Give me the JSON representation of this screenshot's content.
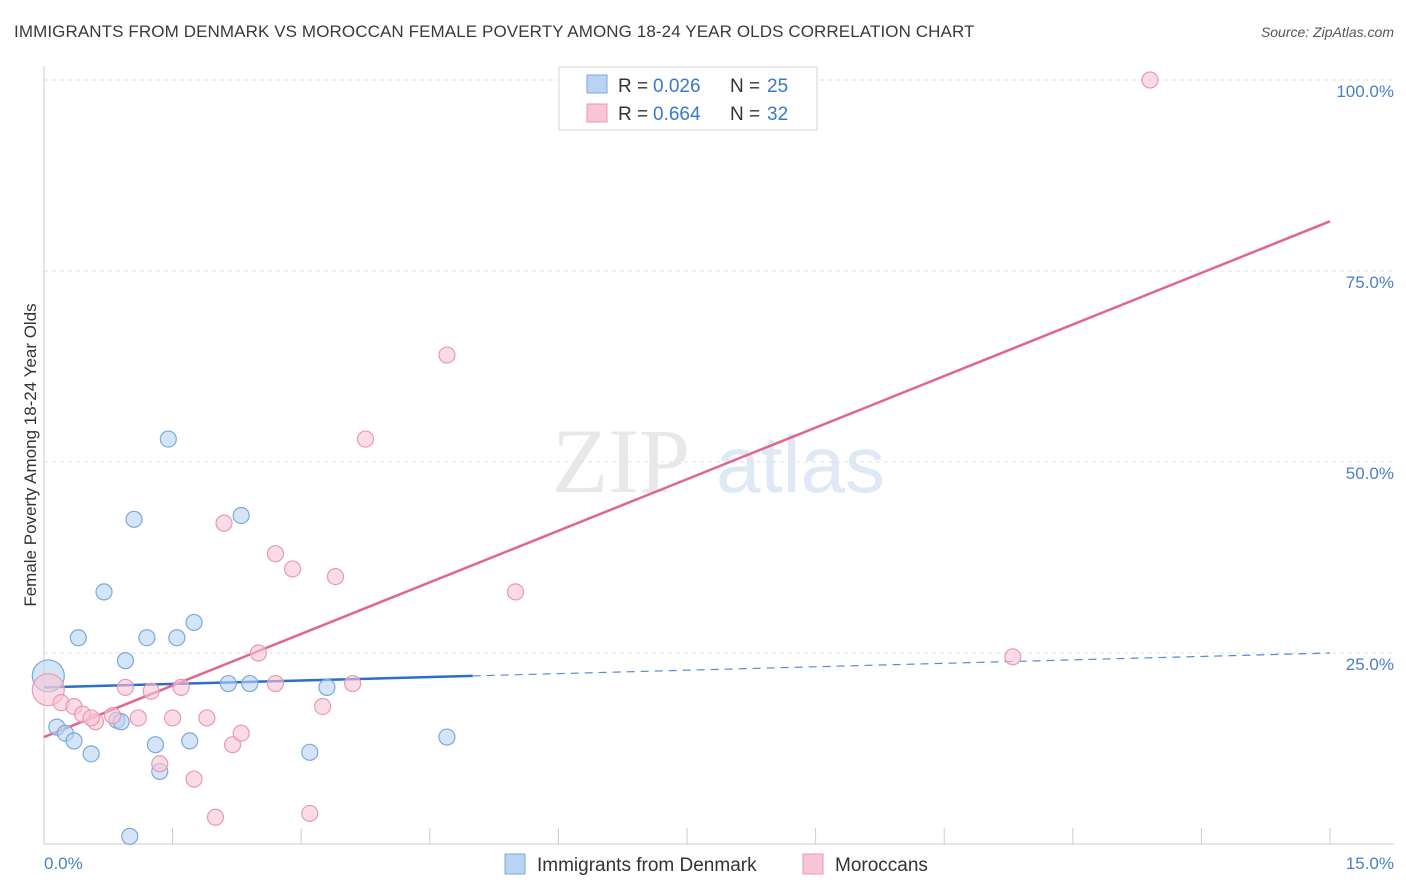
{
  "header": {
    "title": "IMMIGRANTS FROM DENMARK VS MOROCCAN FEMALE POVERTY AMONG 18-24 YEAR OLDS CORRELATION CHART",
    "source": "Source: ZipAtlas.com"
  },
  "watermark": {
    "zip": "ZIP",
    "atlas": "atlas"
  },
  "legend": {
    "rows": [
      {
        "r_label": "R = ",
        "r_value": "0.026",
        "n_label": "N = ",
        "n_value": "25"
      },
      {
        "r_label": "R = ",
        "r_value": "0.664",
        "n_label": "N = ",
        "n_value": "32"
      }
    ]
  },
  "chart_data": {
    "type": "scatter",
    "ylabel": "Female Poverty Among 18-24 Year Olds",
    "xlim": [
      0,
      15
    ],
    "ylim": [
      0,
      100
    ],
    "x_tick_labels": [
      "0.0%",
      "15.0%"
    ],
    "y_ticks": [
      25,
      50,
      75,
      100
    ],
    "y_tick_labels": [
      "25.0%",
      "50.0%",
      "75.0%",
      "100.0%"
    ],
    "grid": true,
    "legend_position": "top-center",
    "colors": {
      "denmark_fill": "#b9d3f3",
      "denmark_stroke": "#7aa8de",
      "denmark_line": "#2a6fca",
      "moroccan_fill": "#f8c5d5",
      "moroccan_stroke": "#e89ab3",
      "moroccan_line": "#e0658f"
    },
    "series": [
      {
        "name": "Immigrants from Denmark",
        "points": [
          [
            0.05,
            22.0
          ],
          [
            0.15,
            15.3
          ],
          [
            0.25,
            14.5
          ],
          [
            0.35,
            13.5
          ],
          [
            0.4,
            27.0
          ],
          [
            0.55,
            11.8
          ],
          [
            0.7,
            33.0
          ],
          [
            0.85,
            16.2
          ],
          [
            0.9,
            16.0
          ],
          [
            0.95,
            24.0
          ],
          [
            1.05,
            42.5
          ],
          [
            1.2,
            27.0
          ],
          [
            1.3,
            13.0
          ],
          [
            1.35,
            9.5
          ],
          [
            1.45,
            53.0
          ],
          [
            1.55,
            27.0
          ],
          [
            1.7,
            13.5
          ],
          [
            1.75,
            29.0
          ],
          [
            2.15,
            21.0
          ],
          [
            2.3,
            43.0
          ],
          [
            2.4,
            21.0
          ],
          [
            3.1,
            12.0
          ],
          [
            3.3,
            20.5
          ],
          [
            4.7,
            14.0
          ],
          [
            1.0,
            1.0
          ]
        ],
        "trend": {
          "x": [
            0,
            5.0,
            15
          ],
          "y": [
            20.5,
            22.0,
            25.0
          ]
        }
      },
      {
        "name": "Moroccans",
        "points": [
          [
            0.05,
            20.2
          ],
          [
            0.2,
            18.5
          ],
          [
            0.35,
            18.0
          ],
          [
            0.45,
            17.0
          ],
          [
            0.6,
            16.0
          ],
          [
            0.8,
            16.8
          ],
          [
            0.95,
            20.5
          ],
          [
            1.1,
            16.5
          ],
          [
            1.25,
            20.0
          ],
          [
            1.35,
            10.5
          ],
          [
            1.5,
            16.5
          ],
          [
            1.6,
            20.5
          ],
          [
            1.9,
            16.5
          ],
          [
            2.0,
            3.5
          ],
          [
            2.1,
            42.0
          ],
          [
            2.2,
            13.0
          ],
          [
            2.3,
            14.5
          ],
          [
            2.5,
            25.0
          ],
          [
            2.7,
            21.0
          ],
          [
            2.7,
            38.0
          ],
          [
            2.9,
            36.0
          ],
          [
            3.1,
            4.0
          ],
          [
            3.25,
            18.0
          ],
          [
            3.4,
            35.0
          ],
          [
            3.6,
            21.0
          ],
          [
            3.75,
            53.0
          ],
          [
            4.7,
            64.0
          ],
          [
            5.5,
            33.0
          ],
          [
            11.3,
            24.5
          ],
          [
            12.9,
            100.0
          ],
          [
            1.75,
            8.5
          ],
          [
            0.55,
            16.5
          ]
        ],
        "trend": {
          "x": [
            0,
            15
          ],
          "y": [
            14.0,
            81.5
          ]
        }
      }
    ]
  }
}
